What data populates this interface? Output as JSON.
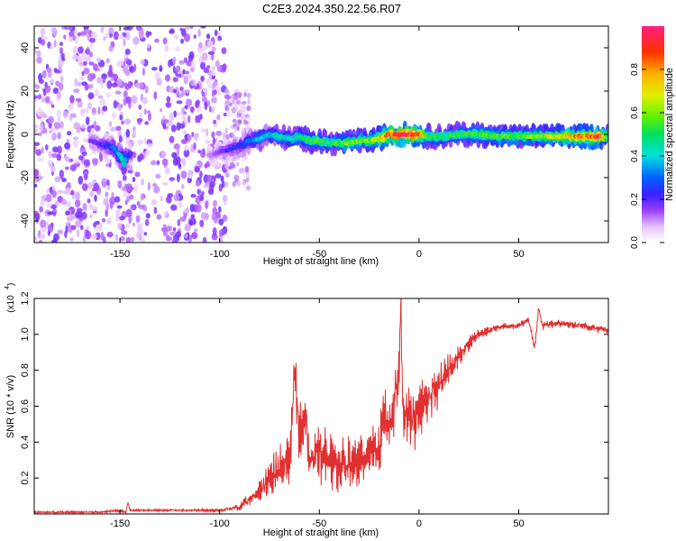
{
  "title": "C2E3.2024.350.22.56.R07",
  "colors": {
    "snr_line": "#e03030",
    "axis": "#000000",
    "background": "#ffffff"
  },
  "chart_data": [
    {
      "type": "heatmap",
      "name": "spectrogram",
      "xlabel": "Height of straight line (km)",
      "ylabel": "Frequency (Hz)",
      "xlim": [
        -193,
        95
      ],
      "ylim": [
        -50,
        50
      ],
      "xticks": [
        -150,
        -100,
        -50,
        0,
        50
      ],
      "xtick_labels": [
        "-150",
        "-100",
        "-50",
        "0",
        "50"
      ],
      "yticks": [
        -40,
        -20,
        0,
        20,
        40
      ],
      "ytick_labels": [
        "-40",
        "-20",
        "0",
        "20",
        "40"
      ],
      "colorbar": {
        "label": "Normalized spectral amplitude",
        "range": [
          0,
          1
        ],
        "ticks": [
          0.0,
          0.2,
          0.4,
          0.6,
          0.8
        ],
        "tick_labels": [
          "0.0",
          "0.2",
          "0.4",
          "0.6",
          "0.8"
        ]
      },
      "noise_region_km": [
        -193,
        -97
      ],
      "ridge": {
        "x": [
          -165,
          -158,
          -153,
          -150,
          -148,
          -145,
          -105,
          -100,
          -95,
          -90,
          -85,
          -80,
          -75,
          -70,
          -65,
          -60,
          -55,
          -50,
          -45,
          -40,
          -35,
          -30,
          -25,
          -20,
          -15,
          -10,
          -5,
          0,
          5,
          10,
          20,
          30,
          40,
          50,
          60,
          70,
          80,
          90,
          95
        ],
        "y": [
          -3,
          -5,
          -6,
          -10,
          -13,
          -9,
          -10,
          -8,
          -7,
          -5,
          -3,
          -2,
          0,
          -1,
          -2,
          -1,
          -3,
          -3,
          -4,
          -4,
          -4,
          -3,
          -3,
          -2,
          0,
          0,
          0,
          0,
          -1,
          -1,
          0,
          0,
          -1,
          -1,
          -1,
          -1,
          -1,
          -1,
          -1
        ],
        "amplitude": [
          0.15,
          0.2,
          0.3,
          0.35,
          0.45,
          0.2,
          0.1,
          0.15,
          0.2,
          0.25,
          0.3,
          0.4,
          0.35,
          0.45,
          0.4,
          0.45,
          0.5,
          0.55,
          0.5,
          0.55,
          0.6,
          0.55,
          0.6,
          0.7,
          0.85,
          0.95,
          0.95,
          0.85,
          0.5,
          0.5,
          0.5,
          0.55,
          0.55,
          0.55,
          0.6,
          0.65,
          0.8,
          0.9,
          0.55
        ]
      }
    },
    {
      "type": "line",
      "name": "snr",
      "xlabel": "Height of straight line (km)",
      "ylabel": "SNR (10 * v/v)",
      "scale_label": "(x10",
      "scale_exponent": "4",
      "xlim": [
        -193,
        95
      ],
      "ylim": [
        0,
        1.2
      ],
      "xticks": [
        -150,
        -100,
        -50,
        0,
        50
      ],
      "xtick_labels": [
        "-150",
        "-100",
        "-50",
        "0",
        "50"
      ],
      "yticks": [
        0.2,
        0.4,
        0.6,
        0.8,
        1.0,
        1.2
      ],
      "ytick_labels": [
        "0.2",
        "0.4",
        "0.6",
        "0.8",
        "1.0",
        "1.2"
      ],
      "series": [
        {
          "name": "SNR",
          "x": [
            -193,
            -160,
            -150,
            -147,
            -146,
            -145,
            -140,
            -120,
            -100,
            -95,
            -90,
            -85,
            -80,
            -75,
            -70,
            -65,
            -62,
            -60,
            -57,
            -55,
            -50,
            -45,
            -40,
            -35,
            -30,
            -25,
            -20,
            -17,
            -15,
            -12,
            -10,
            -9,
            -8,
            -5,
            0,
            5,
            10,
            15,
            20,
            25,
            30,
            35,
            40,
            50,
            55,
            58,
            60,
            62,
            70,
            80,
            90,
            95
          ],
          "y": [
            0.01,
            0.01,
            0.02,
            0.01,
            0.07,
            0.02,
            0.02,
            0.02,
            0.02,
            0.03,
            0.04,
            0.08,
            0.12,
            0.18,
            0.25,
            0.3,
            0.82,
            0.35,
            0.6,
            0.3,
            0.35,
            0.3,
            0.3,
            0.28,
            0.3,
            0.32,
            0.35,
            0.55,
            0.45,
            0.7,
            0.75,
            1.22,
            0.55,
            0.5,
            0.55,
            0.65,
            0.72,
            0.8,
            0.88,
            0.95,
            1.0,
            1.02,
            1.04,
            1.05,
            1.08,
            0.92,
            1.14,
            1.05,
            1.06,
            1.05,
            1.03,
            1.02
          ],
          "noise": [
            0.005,
            0.006,
            0.008,
            0.006,
            0.01,
            0.006,
            0.006,
            0.006,
            0.008,
            0.012,
            0.02,
            0.04,
            0.07,
            0.1,
            0.12,
            0.14,
            0.15,
            0.2,
            0.18,
            0.16,
            0.16,
            0.16,
            0.15,
            0.14,
            0.14,
            0.15,
            0.16,
            0.18,
            0.2,
            0.22,
            0.22,
            0.2,
            0.2,
            0.18,
            0.14,
            0.12,
            0.1,
            0.08,
            0.06,
            0.04,
            0.03,
            0.025,
            0.02,
            0.02,
            0.02,
            0.03,
            0.02,
            0.02,
            0.02,
            0.02,
            0.02,
            0.02
          ]
        }
      ]
    }
  ]
}
